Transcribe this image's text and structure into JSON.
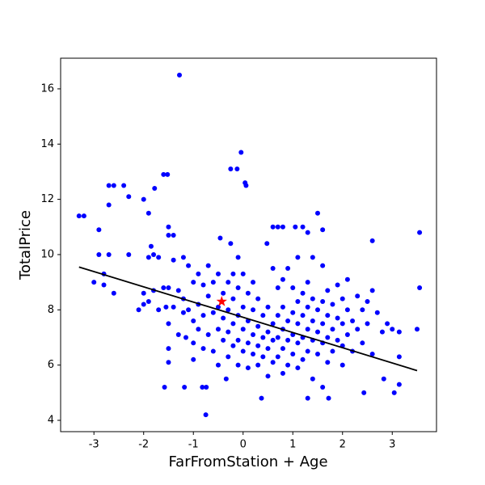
{
  "chart_data": {
    "type": "scatter",
    "x_label": "FarFromStation + Age",
    "y_label": "TotalPrice",
    "color": "#0000ff",
    "xlim": [
      -3.67,
      3.89
    ],
    "ylim": [
      3.59,
      17.11
    ],
    "xticks": [
      -3,
      -2,
      -1,
      0,
      1,
      2,
      3
    ],
    "yticks": [
      4,
      6,
      8,
      10,
      12,
      14,
      16
    ],
    "x": [
      -1.28,
      -0.04,
      -0.25,
      -0.12,
      0.04,
      0.06,
      -2.7,
      -2.6,
      -2.4,
      -2.3,
      -1.78,
      -2.0,
      -2.7,
      -1.6,
      -1.52,
      -3.3,
      -3.2,
      -1.9,
      -2.9,
      -1.5,
      -1.5,
      -1.4,
      1.5,
      0.6,
      0.7,
      0.8,
      1.05,
      1.2,
      1.3,
      1.6,
      2.6,
      3.55,
      -0.46,
      -0.25,
      0.48,
      -0.75,
      0.37,
      1.3,
      1.72,
      2.43,
      3.04,
      2.83,
      3.14,
      -0.34,
      -1.58,
      -1.18,
      -0.82,
      -0.74,
      3.5,
      3.55,
      3.14,
      3.14,
      -3.0,
      -2.9,
      -2.8,
      -2.8,
      -2.7,
      -2.6,
      -2.3,
      -2.1,
      -2.0,
      -2.0,
      -1.9,
      -1.9,
      -1.85,
      -1.8,
      -1.8,
      -1.7,
      -1.7,
      -1.6,
      -1.55,
      -1.5,
      -1.5,
      -1.5,
      -1.5,
      -1.4,
      -1.4,
      -1.3,
      -1.3,
      -1.2,
      -1.2,
      -1.2,
      -1.15,
      -1.1,
      -1.1,
      -1.0,
      -1.0,
      -1.0,
      -1.0,
      -0.9,
      -0.9,
      -0.9,
      -0.8,
      -0.8,
      -0.8,
      -0.7,
      -0.7,
      -0.7,
      -0.6,
      -0.6,
      -0.6,
      -0.5,
      -0.5,
      -0.5,
      -0.5,
      -0.4,
      -0.4,
      -0.4,
      -0.3,
      -0.3,
      -0.3,
      -0.3,
      -0.2,
      -0.2,
      -0.2,
      -0.2,
      -0.1,
      -0.1,
      -0.1,
      -0.1,
      -0.1,
      0.0,
      0.0,
      0.0,
      0.0,
      0.1,
      0.1,
      0.1,
      0.1,
      0.2,
      0.2,
      0.2,
      0.2,
      0.3,
      0.3,
      0.3,
      0.3,
      0.4,
      0.4,
      0.4,
      0.5,
      0.5,
      0.5,
      0.5,
      0.6,
      0.6,
      0.6,
      0.6,
      0.7,
      0.7,
      0.7,
      0.7,
      0.8,
      0.8,
      0.8,
      0.8,
      0.8,
      0.9,
      0.9,
      0.9,
      0.9,
      1.0,
      1.0,
      1.0,
      1.0,
      1.1,
      1.1,
      1.1,
      1.1,
      1.1,
      1.2,
      1.2,
      1.2,
      1.2,
      1.3,
      1.3,
      1.3,
      1.3,
      1.4,
      1.4,
      1.4,
      1.4,
      1.4,
      1.5,
      1.5,
      1.5,
      1.6,
      1.6,
      1.6,
      1.6,
      1.6,
      1.7,
      1.7,
      1.7,
      1.7,
      1.8,
      1.8,
      1.8,
      1.9,
      1.9,
      1.9,
      2.0,
      2.0,
      2.0,
      2.0,
      2.1,
      2.1,
      2.1,
      2.2,
      2.2,
      2.3,
      2.3,
      2.4,
      2.4,
      2.5,
      2.5,
      2.6,
      2.6,
      2.7,
      2.8,
      2.9,
      3.0
    ],
    "y": [
      16.5,
      13.7,
      13.1,
      13.1,
      12.6,
      12.5,
      12.5,
      12.5,
      12.5,
      12.1,
      12.4,
      12.0,
      11.8,
      12.9,
      12.9,
      11.4,
      11.4,
      11.5,
      10.9,
      11.0,
      10.7,
      10.7,
      11.5,
      11.0,
      11.0,
      11.0,
      11.0,
      11.0,
      10.8,
      10.9,
      10.5,
      10.8,
      10.6,
      10.4,
      10.4,
      4.2,
      4.8,
      4.8,
      4.8,
      5.0,
      5.0,
      5.5,
      5.3,
      5.5,
      5.2,
      5.2,
      5.2,
      5.2,
      7.3,
      8.8,
      7.2,
      6.3,
      9.0,
      10.0,
      9.3,
      8.9,
      10.0,
      8.6,
      10.0,
      8.0,
      8.2,
      8.6,
      9.9,
      8.3,
      10.3,
      10.0,
      8.7,
      9.9,
      8.0,
      8.8,
      8.1,
      8.8,
      7.5,
      6.6,
      6.1,
      9.8,
      8.1,
      8.7,
      7.1,
      9.9,
      8.4,
      7.9,
      7.0,
      9.6,
      8.0,
      9.0,
      7.6,
      6.8,
      6.2,
      9.3,
      8.2,
      7.3,
      8.9,
      7.8,
      6.6,
      9.6,
      8.5,
      7.1,
      9.0,
      7.9,
      6.5,
      9.3,
      8.1,
      7.3,
      6.0,
      8.6,
      7.7,
      6.9,
      9.0,
      8.0,
      7.2,
      6.3,
      9.3,
      8.4,
      7.5,
      6.7,
      9.9,
      8.8,
      7.8,
      6.9,
      6.0,
      9.3,
      8.1,
      7.3,
      6.5,
      8.6,
      7.6,
      6.8,
      5.9,
      9.0,
      8.0,
      7.1,
      6.4,
      8.4,
      7.4,
      6.7,
      6.0,
      7.8,
      7.0,
      6.3,
      8.1,
      7.2,
      6.6,
      5.6,
      9.5,
      7.5,
      6.9,
      6.1,
      8.8,
      7.8,
      7.0,
      6.3,
      9.1,
      8.1,
      7.3,
      6.6,
      5.7,
      9.5,
      7.6,
      6.9,
      6.0,
      8.8,
      7.9,
      7.1,
      6.4,
      9.9,
      8.3,
      7.5,
      6.8,
      5.9,
      8.6,
      7.8,
      7.0,
      6.2,
      9.0,
      8.1,
      7.3,
      6.5,
      9.9,
      8.4,
      7.6,
      6.9,
      5.5,
      8.0,
      7.2,
      6.4,
      9.6,
      8.3,
      7.5,
      6.8,
      5.2,
      8.7,
      7.8,
      7.0,
      6.1,
      8.2,
      7.3,
      6.5,
      8.9,
      7.7,
      6.9,
      8.4,
      7.5,
      6.7,
      6.0,
      9.1,
      8.0,
      7.1,
      7.6,
      6.5,
      8.5,
      7.3,
      8.0,
      6.8,
      8.3,
      7.5,
      8.7,
      6.4,
      7.9,
      7.2,
      7.5,
      7.3
    ],
    "fit_line": {
      "x": [
        -3.3,
        3.5
      ],
      "y": [
        9.55,
        5.8
      ],
      "color": "#000000"
    },
    "highlight": {
      "x": -0.43,
      "y": 8.3,
      "color": "#ff0000"
    }
  }
}
